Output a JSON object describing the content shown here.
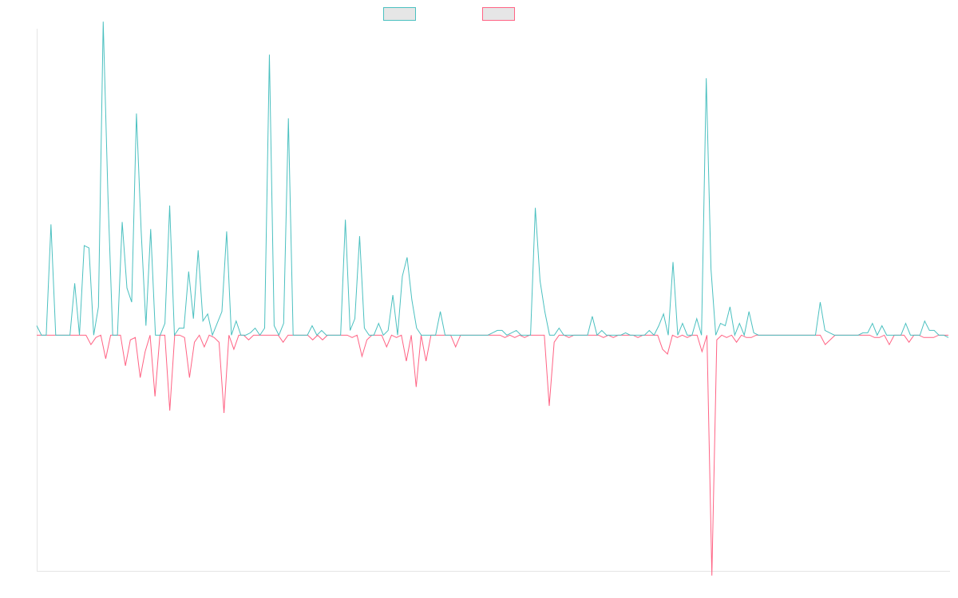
{
  "chart_data": {
    "type": "line",
    "title": "",
    "xlabel": "",
    "ylabel": "",
    "ylim": [
      -1.0,
      1.3
    ],
    "grid": false,
    "legend": {
      "placement": "top-center",
      "entries": [
        "",
        ""
      ]
    },
    "series": [
      {
        "name": "",
        "color": "#4bc0c0",
        "values": [
          0.04,
          0,
          0,
          0.47,
          0,
          0,
          0,
          0,
          0.22,
          0,
          0.38,
          0.37,
          0,
          0.12,
          1.33,
          0.59,
          0,
          0,
          0.48,
          0.2,
          0.14,
          0.94,
          0.44,
          0.04,
          0.45,
          0,
          0,
          0.05,
          0.55,
          0,
          0.03,
          0.03,
          0.27,
          0.07,
          0.36,
          0.06,
          0.09,
          0,
          0.05,
          0.1,
          0.44,
          0,
          0.06,
          0,
          0,
          0.01,
          0.03,
          0,
          0.03,
          1.19,
          0.04,
          0,
          0.05,
          0.92,
          0,
          0,
          0,
          0,
          0.04,
          0,
          0.02,
          0,
          0,
          0,
          0,
          0.49,
          0.02,
          0.07,
          0.42,
          0.03,
          0,
          0,
          0.05,
          0,
          0.02,
          0.17,
          0,
          0.25,
          0.33,
          0.15,
          0.03,
          0,
          0,
          0,
          0,
          0.1,
          0,
          0,
          0,
          0,
          0,
          0,
          0,
          0,
          0,
          0,
          0.01,
          0.02,
          0.02,
          0,
          0.01,
          0.02,
          0,
          0,
          0,
          0.54,
          0.23,
          0.1,
          0,
          0,
          0.03,
          0,
          0,
          0,
          0,
          0,
          0,
          0.08,
          0,
          0.02,
          0,
          0,
          0,
          0,
          0.01,
          0,
          0,
          0,
          0,
          0.02,
          0,
          0.04,
          0.09,
          0,
          0.31,
          0,
          0.05,
          0,
          0,
          0.07,
          0,
          1.09,
          0.28,
          0,
          0.05,
          0.04,
          0.12,
          0,
          0.05,
          0,
          0.1,
          0.01,
          0,
          0,
          0,
          0,
          0,
          0,
          0,
          0,
          0,
          0,
          0,
          0,
          0,
          0.14,
          0.02,
          0.01,
          0,
          0,
          0,
          0,
          0,
          0,
          0.01,
          0.01,
          0.05,
          0,
          0.04,
          0,
          0,
          0,
          0,
          0.05,
          0,
          0,
          0,
          0.06,
          0.02,
          0.02,
          0,
          0,
          -0.01
        ]
      },
      {
        "name": "",
        "color": "#ff6384",
        "values": [
          0,
          0,
          0,
          0,
          0,
          0,
          0,
          0,
          0,
          0,
          0,
          -0.04,
          -0.01,
          0,
          -0.1,
          0,
          0,
          0,
          -0.13,
          -0.02,
          -0.01,
          -0.18,
          -0.07,
          0,
          -0.26,
          0,
          0,
          -0.32,
          0,
          0,
          -0.01,
          -0.18,
          -0.03,
          0,
          -0.05,
          0,
          -0.01,
          -0.03,
          -0.33,
          0,
          -0.06,
          0,
          0,
          -0.02,
          0,
          0,
          0,
          0,
          0,
          0,
          -0.03,
          0,
          0,
          0,
          0,
          0,
          -0.02,
          0,
          -0.02,
          0,
          0,
          0,
          0,
          0,
          -0.01,
          0,
          -0.09,
          -0.02,
          0,
          0,
          0,
          -0.05,
          0,
          -0.01,
          0,
          -0.11,
          0,
          -0.22,
          0,
          -0.11,
          0,
          0,
          0,
          0,
          0,
          -0.05,
          0,
          0,
          0,
          0,
          0,
          0,
          0,
          0,
          0,
          -0.01,
          0,
          -0.01,
          0,
          -0.01,
          0,
          0,
          0,
          0,
          -0.3,
          -0.03,
          0,
          0,
          -0.01,
          0,
          0,
          0,
          0,
          0,
          0,
          -0.01,
          0,
          -0.01,
          0,
          0,
          0,
          0,
          -0.01,
          0,
          0,
          0,
          0,
          -0.06,
          -0.08,
          0,
          -0.01,
          0,
          -0.01,
          0,
          0,
          -0.07,
          0,
          -1.02,
          -0.02,
          0,
          -0.01,
          0,
          -0.03,
          0,
          -0.01,
          -0.01,
          0,
          0,
          0,
          0,
          0,
          0,
          0,
          0,
          0,
          0,
          0,
          0,
          0,
          0,
          -0.04,
          -0.02,
          0,
          0,
          0,
          0,
          0,
          0,
          0,
          0,
          -0.01,
          -0.01,
          0,
          -0.04,
          0,
          0,
          0,
          -0.03,
          0,
          0,
          -0.01,
          -0.01,
          -0.01,
          0,
          0,
          0
        ]
      }
    ]
  }
}
